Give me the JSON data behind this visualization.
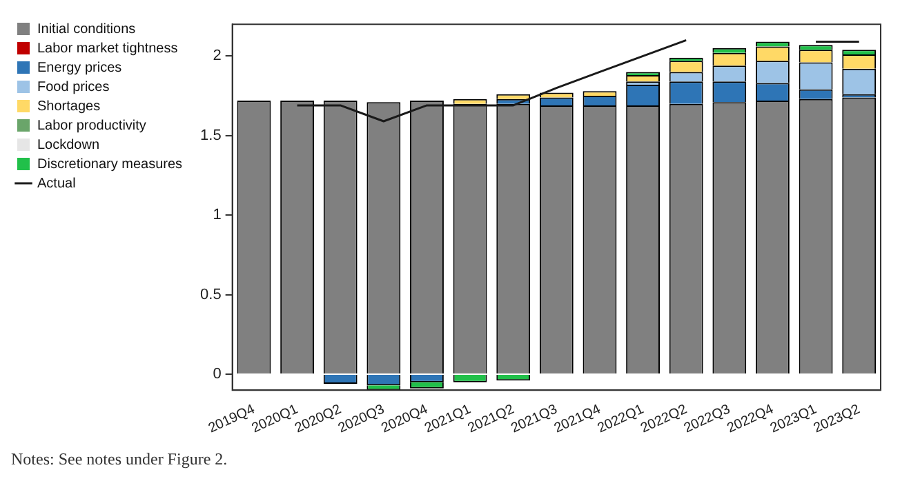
{
  "chart_data": {
    "type": "bar",
    "stacked": true,
    "legend": "left",
    "grid": false,
    "marker": "none",
    "line_style": "solid",
    "categories": [
      "2019Q4",
      "2020Q1",
      "2020Q2",
      "2020Q3",
      "2020Q4",
      "2021Q1",
      "2021Q2",
      "2021Q3",
      "2021Q4",
      "2022Q1",
      "2022Q2",
      "2022Q3",
      "2022Q4",
      "2023Q1",
      "2023Q2"
    ],
    "ylim": [
      -0.1,
      2.2
    ],
    "yticks": [
      0,
      0.5,
      1,
      1.5,
      2
    ],
    "series": [
      {
        "name": "Initial conditions",
        "color": "#808080",
        "values": [
          1.72,
          1.72,
          1.72,
          1.71,
          1.72,
          1.7,
          1.7,
          1.69,
          1.69,
          1.69,
          1.7,
          1.71,
          1.72,
          1.73,
          1.74
        ]
      },
      {
        "name": "Labor market tightness",
        "color": "#c00000",
        "values": [
          0,
          0,
          0,
          0,
          0,
          0,
          0,
          0,
          0,
          0,
          0,
          0,
          0,
          0,
          0
        ]
      },
      {
        "name": "Energy prices",
        "color": "#2e75b6",
        "values": [
          0,
          0,
          -0.06,
          -0.07,
          -0.05,
          0,
          0.03,
          0.05,
          0.06,
          0.13,
          0.14,
          0.13,
          0.11,
          0.06,
          0.02
        ]
      },
      {
        "name": "Food prices",
        "color": "#9dc3e6",
        "values": [
          0,
          0,
          0,
          0,
          0,
          0,
          0,
          0,
          0,
          0.02,
          0.06,
          0.1,
          0.14,
          0.17,
          0.16
        ]
      },
      {
        "name": "Shortages",
        "color": "#ffd966",
        "values": [
          0,
          0,
          0,
          0,
          0,
          0.03,
          0.03,
          0.03,
          0.03,
          0.04,
          0.07,
          0.08,
          0.09,
          0.08,
          0.09
        ]
      },
      {
        "name": "Labor productivity",
        "color": "#6aa56a",
        "values": [
          0,
          0,
          0,
          0,
          0,
          0,
          0,
          0,
          0,
          0,
          0,
          0,
          0,
          0,
          0
        ]
      },
      {
        "name": "Lockdown",
        "color": "#e6e6e6",
        "values": [
          0,
          0,
          0,
          0,
          0,
          0,
          0,
          0,
          0,
          0,
          0,
          0,
          0,
          0,
          0
        ]
      },
      {
        "name": "Discretionary measures",
        "color": "#21c04a",
        "values": [
          0,
          0,
          0,
          -0.03,
          -0.04,
          -0.05,
          -0.04,
          0,
          0,
          0.02,
          0.02,
          0.03,
          0.03,
          0.03,
          0.03
        ]
      },
      {
        "name": "Actual",
        "type": "line",
        "color": "#1a1a1a",
        "values": [
          null,
          1.69,
          1.69,
          1.59,
          1.69,
          1.69,
          1.69,
          1.8,
          1.9,
          2.0,
          2.1,
          null,
          null,
          2.09,
          2.09
        ]
      }
    ],
    "annotations": [
      "Notes: See notes under Figure 2."
    ]
  }
}
